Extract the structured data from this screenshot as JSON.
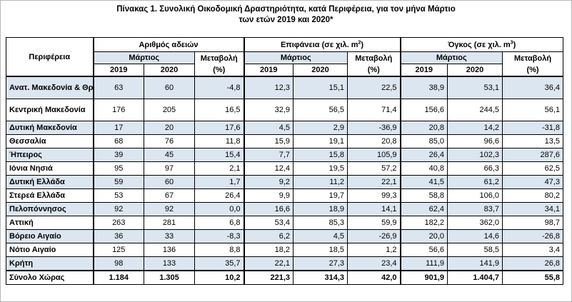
{
  "title": {
    "line1": "Πίνακας 1. Συνολική Οικοδομική Δραστηριότητα, κατά Περιφέρεια, για τον μήνα Μάρτιο",
    "line2": "των ετών 2019 και 2020*"
  },
  "headers": {
    "region": "Περιφέρεια",
    "group1": "Αριθμός αδειών",
    "group2_prefix": "Επιφάνεια (σε χιλ. m",
    "group2_sup": "2",
    "group2_suffix": ")",
    "group3_prefix": "Όγκος (σε χιλ. m",
    "group3_sup": "3",
    "group3_suffix": ")",
    "month": "Μάρτιος",
    "change_line1": "Μεταβολή",
    "change_line2": "(%)",
    "year1": "2019",
    "year2": "2020"
  },
  "rows": [
    {
      "region": "Ανατ. Μακεδονία & Θράκη",
      "p19": "63",
      "p20": "60",
      "pc": "-4,8",
      "a19": "12,3",
      "a20": "15,1",
      "ac": "22,5",
      "v19": "38,9",
      "v20": "53,1",
      "vc": "36,4",
      "shade": true
    },
    {
      "region": "Κεντρική Μακεδονία",
      "p19": "176",
      "p20": "205",
      "pc": "16,5",
      "a19": "32,9",
      "a20": "56,5",
      "ac": "71,4",
      "v19": "156,6",
      "v20": "244,5",
      "vc": "56,1",
      "shade": false
    },
    {
      "region": "Δυτική Μακεδονία",
      "p19": "17",
      "p20": "20",
      "pc": "17,6",
      "a19": "4,5",
      "a20": "2,9",
      "ac": "-36,9",
      "v19": "20,8",
      "v20": "14,2",
      "vc": "-31,8",
      "shade": true
    },
    {
      "region": "Θεσσαλία",
      "p19": "68",
      "p20": "76",
      "pc": "11,8",
      "a19": "15,9",
      "a20": "19,1",
      "ac": "20,8",
      "v19": "85,0",
      "v20": "96,6",
      "vc": "13,5",
      "shade": false
    },
    {
      "region": "Ήπειρος",
      "p19": "39",
      "p20": "45",
      "pc": "15,4",
      "a19": "7,7",
      "a20": "15,8",
      "ac": "105,9",
      "v19": "26,4",
      "v20": "102,3",
      "vc": "287,6",
      "shade": true
    },
    {
      "region": "Ιόνια Νησιά",
      "p19": "95",
      "p20": "97",
      "pc": "2,1",
      "a19": "12,4",
      "a20": "19,5",
      "ac": "57,2",
      "v19": "40,8",
      "v20": "66,3",
      "vc": "62,5",
      "shade": false
    },
    {
      "region": "Δυτική Ελλάδα",
      "p19": "59",
      "p20": "60",
      "pc": "1,7",
      "a19": "9,2",
      "a20": "11,2",
      "ac": "22,1",
      "v19": "41,5",
      "v20": "61,2",
      "vc": "47,3",
      "shade": true
    },
    {
      "region": "Στερεά Ελλάδα",
      "p19": "53",
      "p20": "67",
      "pc": "26,4",
      "a19": "9,9",
      "a20": "19,7",
      "ac": "99,3",
      "v19": "58,8",
      "v20": "106,0",
      "vc": "80,2",
      "shade": false
    },
    {
      "region": "Πελοπόννησος",
      "p19": "92",
      "p20": "92",
      "pc": "0,0",
      "a19": "16,6",
      "a20": "18,9",
      "ac": "14,1",
      "v19": "62,4",
      "v20": "83,7",
      "vc": "34,1",
      "shade": true
    },
    {
      "region": "Αττική",
      "p19": "263",
      "p20": "281",
      "pc": "6,8",
      "a19": "53,4",
      "a20": "85,3",
      "ac": "59,9",
      "v19": "182,2",
      "v20": "362,0",
      "vc": "98,7",
      "shade": false
    },
    {
      "region": "Βόρειο Αιγαίο",
      "p19": "36",
      "p20": "33",
      "pc": "-8,3",
      "a19": "6,2",
      "a20": "4,5",
      "ac": "-26,9",
      "v19": "20,0",
      "v20": "14,6",
      "vc": "-26,8",
      "shade": true
    },
    {
      "region": "Νότιο Αιγαίο",
      "p19": "125",
      "p20": "136",
      "pc": "8,8",
      "a19": "18,2",
      "a20": "18,5",
      "ac": "1,2",
      "v19": "56,6",
      "v20": "58,5",
      "vc": "3,4",
      "shade": false
    },
    {
      "region": "Κρήτη",
      "p19": "98",
      "p20": "133",
      "pc": "35,7",
      "a19": "22,1",
      "a20": "27,3",
      "ac": "23,4",
      "v19": "111,9",
      "v20": "141,9",
      "vc": "26,8",
      "shade": true
    }
  ],
  "total": {
    "region": "Σύνολο Χώρας",
    "p19": "1.184",
    "p20": "1.305",
    "pc": "10,2",
    "a19": "221,3",
    "a20": "314,3",
    "ac": "42,0",
    "v19": "901,9",
    "v20": "1.404,7",
    "vc": "55,8"
  },
  "colors": {
    "shade": "#dce6f1",
    "border": "#000000"
  }
}
